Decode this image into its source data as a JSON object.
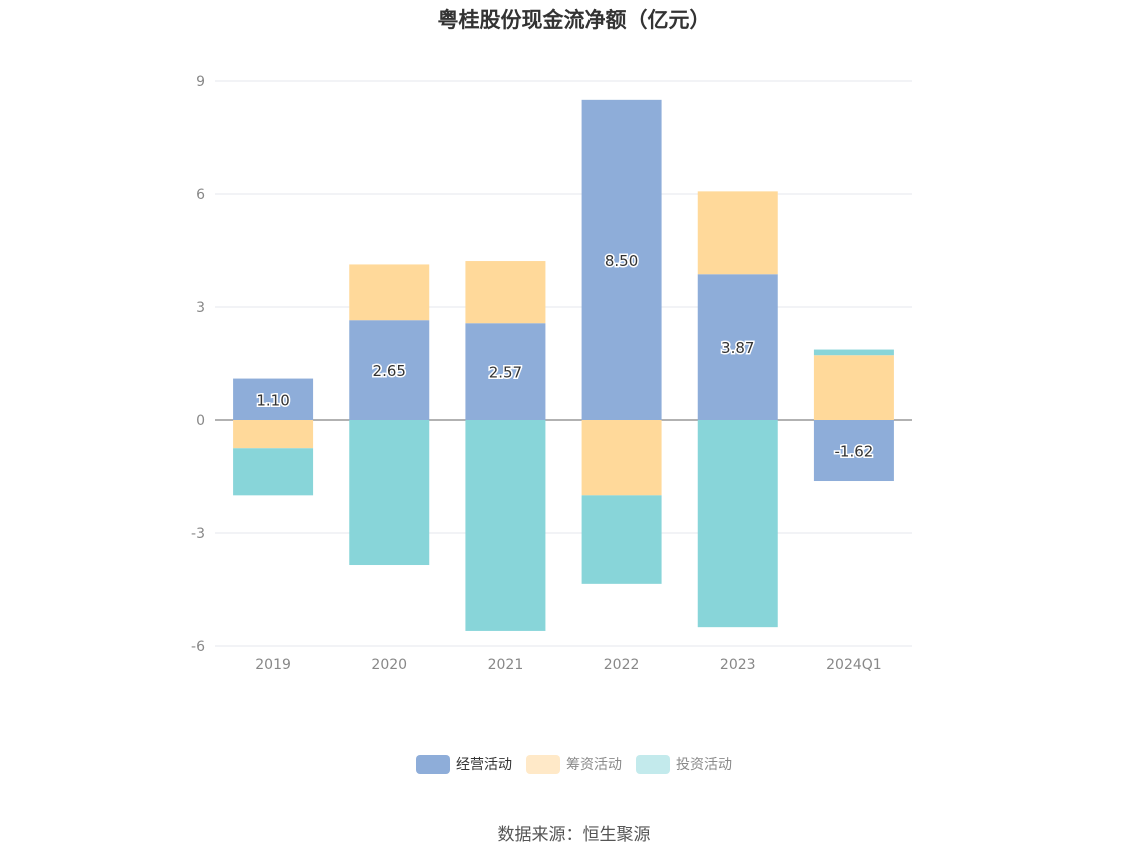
{
  "chart_data": {
    "type": "bar",
    "stacked": true,
    "title": "粤桂股份现金流净额（亿元）",
    "categories": [
      "2019",
      "2020",
      "2021",
      "2022",
      "2023",
      "2024Q1"
    ],
    "series": [
      {
        "name": "经营活动",
        "color": "#8eadd9",
        "values": [
          1.1,
          2.65,
          2.57,
          8.5,
          3.87,
          -1.62
        ],
        "labels": [
          "1.10",
          "2.65",
          "2.57",
          "8.50",
          "3.87",
          "-1.62"
        ]
      },
      {
        "name": "筹资活动",
        "color": "#ffd99a",
        "values": [
          -0.75,
          1.48,
          1.65,
          -2.0,
          2.2,
          1.72
        ]
      },
      {
        "name": "投资活动",
        "color": "#88d5d9",
        "values": [
          -1.25,
          -3.85,
          -5.6,
          -2.35,
          -5.5,
          0.15
        ]
      }
    ],
    "yticks": [
      "9",
      "6",
      "3",
      "0",
      "-3",
      "-6"
    ],
    "ylim": [
      -6,
      9
    ],
    "legend_position": "bottom",
    "grid": true
  },
  "legend": {
    "items": [
      {
        "label": "经营活动",
        "color": "#8eadd9"
      },
      {
        "label": "筹资活动",
        "color": "#ffe9c8"
      },
      {
        "label": "投资活动",
        "color": "#c3eaec"
      }
    ]
  },
  "source": "数据来源：恒生聚源"
}
